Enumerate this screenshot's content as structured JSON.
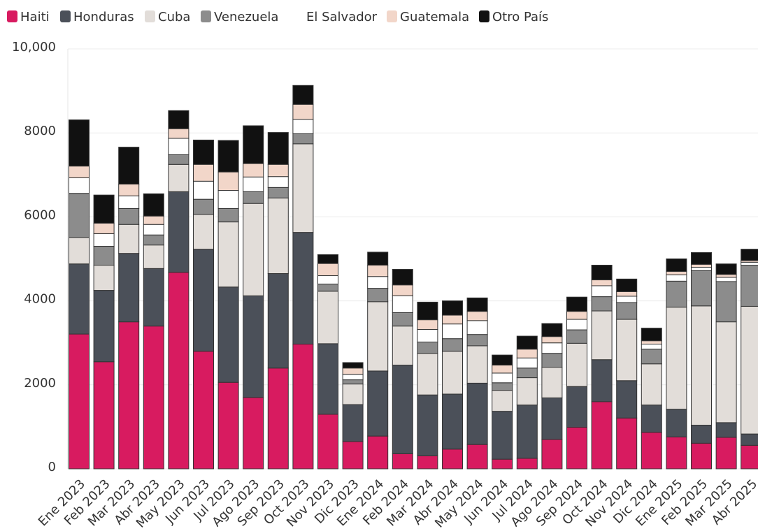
{
  "chart_data": {
    "type": "stacked_bar",
    "categories": [
      "Ene 2023",
      "Feb 2023",
      "Mar 2023",
      "Abr 2023",
      "May 2023",
      "Jun 2023",
      "Jul 2023",
      "Ago 2023",
      "Sep 2023",
      "Oct 2023",
      "Nov 2023",
      "Dic 2023",
      "Ene 2024",
      "Feb 2024",
      "Mar 2024",
      "Abr 2024",
      "May 2024",
      "Jun 2024",
      "Jul 2024",
      "Ago 2024",
      "Sep 2024",
      "Oct 2024",
      "Nov 2024",
      "Dic 2024",
      "Ene 2025",
      "Feb 2025",
      "Mar 2025",
      "Abr 2025"
    ],
    "series": [
      {
        "name": "Haiti",
        "color": "#d81b60",
        "values": [
          3210,
          2550,
          3500,
          3400,
          4680,
          2800,
          2060,
          1700,
          2400,
          2970,
          1300,
          650,
          780,
          360,
          310,
          470,
          580,
          230,
          250,
          700,
          990,
          1600,
          1210,
          870,
          760,
          610,
          750,
          560
        ]
      },
      {
        "name": "Honduras",
        "color": "#4b5059",
        "values": [
          1670,
          1700,
          1630,
          1370,
          1920,
          2430,
          2270,
          2420,
          2250,
          2660,
          1680,
          880,
          1550,
          2110,
          1450,
          1310,
          1460,
          1140,
          1270,
          990,
          970,
          1000,
          890,
          650,
          660,
          430,
          350,
          270
        ]
      },
      {
        "name": "Cuba",
        "color": "#e2ddd9",
        "values": [
          630,
          600,
          690,
          560,
          650,
          830,
          1550,
          2200,
          1800,
          2110,
          1250,
          490,
          1650,
          930,
          990,
          1020,
          890,
          500,
          650,
          730,
          1030,
          1160,
          1460,
          980,
          2430,
          2840,
          2400,
          3040
        ]
      },
      {
        "name": "Venezuela",
        "color": "#8c8c8c",
        "values": [
          1050,
          450,
          380,
          240,
          230,
          360,
          320,
          280,
          250,
          240,
          170,
          100,
          320,
          320,
          270,
          300,
          270,
          180,
          230,
          330,
          320,
          340,
          400,
          350,
          620,
          840,
          960,
          980
        ]
      },
      {
        "name": "El Salvador",
        "color": "#ffffff",
        "values": [
          370,
          300,
          300,
          250,
          390,
          430,
          430,
          350,
          260,
          340,
          200,
          130,
          280,
          400,
          300,
          350,
          330,
          230,
          240,
          250,
          250,
          260,
          150,
          120,
          150,
          80,
          100,
          70
        ]
      },
      {
        "name": "Guatemala",
        "color": "#f2d6c9",
        "values": [
          280,
          250,
          280,
          200,
          230,
          400,
          440,
          320,
          290,
          360,
          290,
          150,
          270,
          260,
          230,
          210,
          220,
          190,
          210,
          150,
          190,
          140,
          110,
          80,
          80,
          70,
          70,
          40
        ]
      },
      {
        "name": "Otro País",
        "color": "#111111",
        "values": [
          1100,
          670,
          880,
          530,
          430,
          580,
          750,
          900,
          760,
          450,
          210,
          130,
          310,
          370,
          420,
          340,
          320,
          240,
          310,
          310,
          340,
          350,
          300,
          300,
          300,
          280,
          250,
          270
        ]
      }
    ],
    "ylim": [
      0,
      10000
    ],
    "yticks": [
      0,
      2000,
      4000,
      6000,
      8000,
      {
        "value": 10000,
        "label": "10,000"
      }
    ],
    "grid": true
  }
}
